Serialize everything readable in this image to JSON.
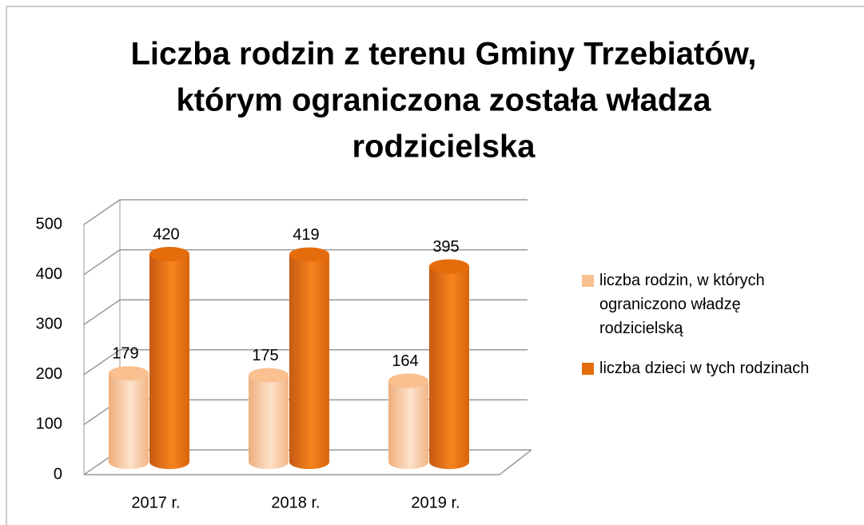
{
  "chart_data": {
    "type": "bar3d",
    "title": [
      "Liczba rodzin z terenu Gminy Trzebiatów,",
      "którym ograniczona została władza",
      "rodzicielska"
    ],
    "categories": [
      "2017 r.",
      "2018 r.",
      "2019 r."
    ],
    "series": [
      {
        "name": "liczba rodzin, w których ograniczono władzę rodzicielską",
        "color": "#fac090",
        "values": [
          179,
          175,
          164
        ]
      },
      {
        "name": "liczba dzieci w tych rodzinach",
        "color": "#e46c0a",
        "values": [
          420,
          419,
          395
        ]
      }
    ],
    "ylim": [
      0,
      500
    ],
    "yticks": [
      0,
      100,
      200,
      300,
      400,
      500
    ],
    "grid": true,
    "legend": "right"
  }
}
